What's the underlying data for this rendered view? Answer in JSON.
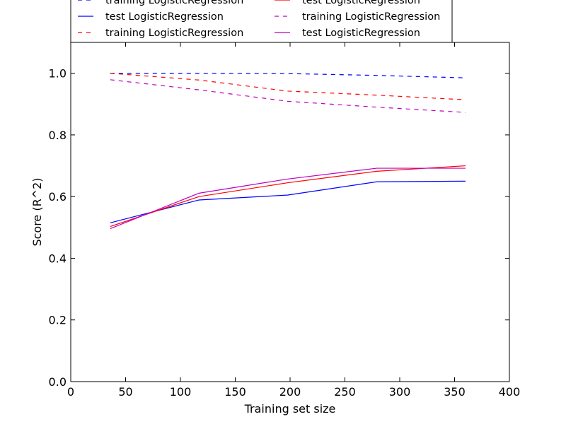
{
  "chart_data": {
    "type": "line",
    "title": "",
    "xlabel": "Training set size",
    "ylabel": "Score (R^2)",
    "xlim": [
      0,
      400
    ],
    "ylim": [
      0.0,
      1.1
    ],
    "xticks": [
      0,
      50,
      100,
      150,
      200,
      250,
      300,
      350,
      400
    ],
    "xtick_labels": [
      "0",
      "50",
      "100",
      "150",
      "200",
      "250",
      "300",
      "350",
      "400"
    ],
    "yticks": [
      0.0,
      0.2,
      0.4,
      0.6,
      0.8,
      1.0
    ],
    "ytick_labels": [
      "0.0",
      "0.2",
      "0.4",
      "0.6",
      "0.8",
      "1.0"
    ],
    "grid": false,
    "legend_position": "top, above plot, two columns, partially cut off",
    "x": [
      36,
      117,
      198,
      279,
      360
    ],
    "series": [
      {
        "name": "training LogisticRegression",
        "color": "#0000ff",
        "style": "dashed",
        "values": [
          1.0,
          1.0,
          0.999,
          0.993,
          0.985
        ]
      },
      {
        "name": "test LogisticRegression",
        "color": "#0000ff",
        "style": "solid",
        "values": [
          0.515,
          0.589,
          0.605,
          0.648,
          0.65
        ]
      },
      {
        "name": "training LogisticRegression",
        "color": "#ff0000",
        "style": "dashed",
        "values": [
          1.0,
          0.978,
          0.942,
          0.929,
          0.914
        ]
      },
      {
        "name": "test LogisticRegression",
        "color": "#ff0000",
        "style": "solid",
        "values": [
          0.503,
          0.6,
          0.645,
          0.682,
          0.7
        ]
      },
      {
        "name": "training LogisticRegression",
        "color": "#bf00bf",
        "style": "dashed",
        "values": [
          0.979,
          0.946,
          0.909,
          0.89,
          0.873
        ]
      },
      {
        "name": "test LogisticRegression",
        "color": "#bf00bf",
        "style": "solid",
        "values": [
          0.496,
          0.611,
          0.657,
          0.692,
          0.692
        ]
      }
    ]
  }
}
